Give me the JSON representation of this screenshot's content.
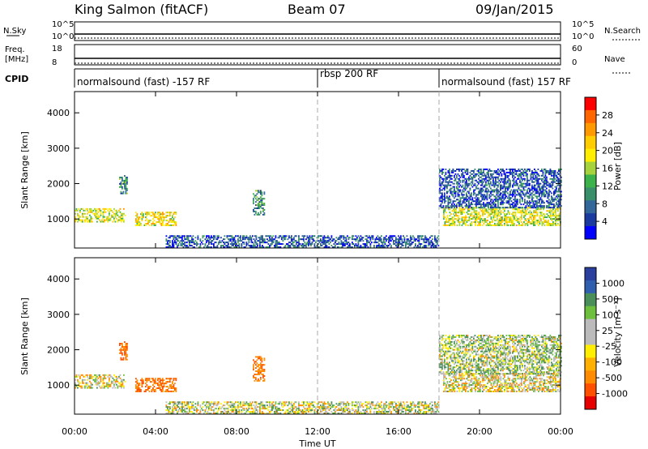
{
  "header": {
    "station": "King Salmon (fitACF)",
    "beam": "Beam 07",
    "date": "09/Jan/2015"
  },
  "top_strips": {
    "nsky_label": "N.Sky",
    "nsearch_label": "N.Search",
    "nsky_ticks": [
      "10^5",
      "10^0"
    ],
    "nsearch_ticks": [
      "10^5",
      "10^0"
    ],
    "freq_label_line1": "Freq.",
    "freq_label_line2": "[MHz]",
    "freq_ticks": [
      "18",
      "8"
    ],
    "nave_label": "Nave",
    "nave_ticks": [
      "60",
      "0"
    ],
    "cpid_label": "CPID"
  },
  "cpid_segments": [
    {
      "label": "normalsound (fast) -157 RF",
      "start_ut": 0
    },
    {
      "label": "rbsp 200 RF",
      "start_ut": 12
    },
    {
      "label": "normalsound (fast) 157 RF",
      "start_ut": 18
    }
  ],
  "power_colorbar": {
    "title": "Power [dB]",
    "ticks": [
      "28",
      "24",
      "20",
      "16",
      "12",
      "8",
      "4"
    ],
    "colors": [
      "#ff0000",
      "#ff6600",
      "#ff9900",
      "#ffcc00",
      "#ffee00",
      "#a6d33c",
      "#3cb34a",
      "#3a8f6b",
      "#336699",
      "#1a3aa0",
      "#0000ff"
    ]
  },
  "velocity_colorbar": {
    "title": "Velocity [m s⁻¹]",
    "ticks": [
      "1000",
      "500",
      "100",
      "25",
      "-25",
      "-100",
      "-500",
      "-1000"
    ],
    "colors": [
      "#2a3f9e",
      "#2f5fae",
      "#4a8f5a",
      "#6fbf3f",
      "#bbbbbb",
      "#bbbbbb",
      "#ffee00",
      "#ffb000",
      "#ff8c00",
      "#ff5000",
      "#e60000"
    ]
  },
  "chart_data": {
    "type": "heatmap",
    "panels": [
      "power",
      "velocity"
    ],
    "x": {
      "label": "Time UT",
      "ticks": [
        "00:00",
        "04:00",
        "08:00",
        "12:00",
        "16:00",
        "20:00",
        "00:00"
      ],
      "range_hours": [
        0,
        24
      ]
    },
    "y": {
      "label": "Slant Range [km]",
      "ticks": [
        "1000",
        "2000",
        "3000",
        "4000"
      ],
      "range_km": [
        180,
        4600
      ]
    },
    "mode_boundaries_ut": [
      12,
      18
    ],
    "echo_regions": [
      {
        "desc": "ionospheric",
        "t": [
          0.0,
          2.5
        ],
        "r": [
          900,
          1300
        ],
        "power_db": 18,
        "velocity": -25
      },
      {
        "desc": "ionospheric",
        "t": [
          3.0,
          5.0
        ],
        "r": [
          800,
          1200
        ],
        "power_db": 20,
        "velocity": -300
      },
      {
        "desc": "ionospheric",
        "t": [
          2.2,
          2.6
        ],
        "r": [
          1700,
          2200
        ],
        "power_db": 10,
        "velocity": -300
      },
      {
        "desc": "ionospheric",
        "t": [
          8.8,
          9.4
        ],
        "r": [
          1100,
          1800
        ],
        "power_db": 10,
        "velocity": -300
      },
      {
        "desc": "ground/near-range",
        "t": [
          4.5,
          18.0
        ],
        "r": [
          180,
          500
        ],
        "power_db": 6,
        "velocity": 0
      },
      {
        "desc": "ionospheric",
        "t": [
          18.2,
          24.0
        ],
        "r": [
          800,
          1300
        ],
        "power_db": 18,
        "velocity": -25
      },
      {
        "desc": "ionospheric",
        "t": [
          18.0,
          24.0
        ],
        "r": [
          1300,
          2400
        ],
        "power_db": 6,
        "velocity": 25
      }
    ]
  }
}
